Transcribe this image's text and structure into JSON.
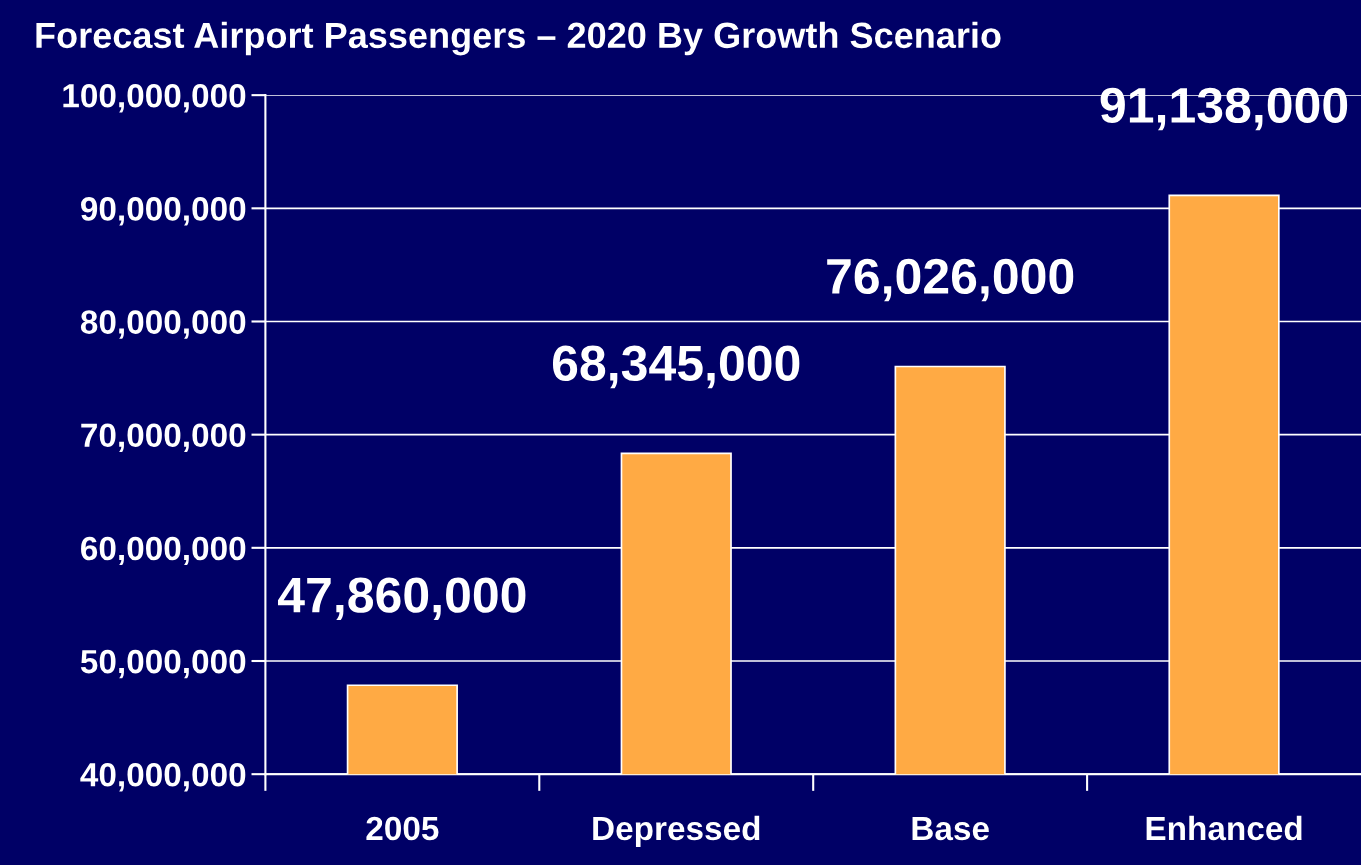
{
  "chart_data": {
    "type": "bar",
    "title": "Forecast Airport Passengers – 2020 By Growth Scenario",
    "categories": [
      "2005",
      "Depressed",
      "Base",
      "Enhanced"
    ],
    "values": [
      47860000,
      68345000,
      76026000,
      91138000
    ],
    "value_labels": [
      "47,860,000",
      "68,345,000",
      "76,026,000",
      "91,138,000"
    ],
    "color": "#ffaa44",
    "ylim": [
      40000000,
      100000000
    ],
    "yticks": [
      {
        "value": 40000000,
        "label": "40,000,000"
      },
      {
        "value": 50000000,
        "label": "50,000,000"
      },
      {
        "value": 60000000,
        "label": "60,000,000"
      },
      {
        "value": 70000000,
        "label": "70,000,000"
      },
      {
        "value": 80000000,
        "label": "80,000,000"
      },
      {
        "value": 90000000,
        "label": "90,000,000"
      },
      {
        "value": 100000000,
        "label": "100,000,000"
      }
    ],
    "grid": "y"
  }
}
